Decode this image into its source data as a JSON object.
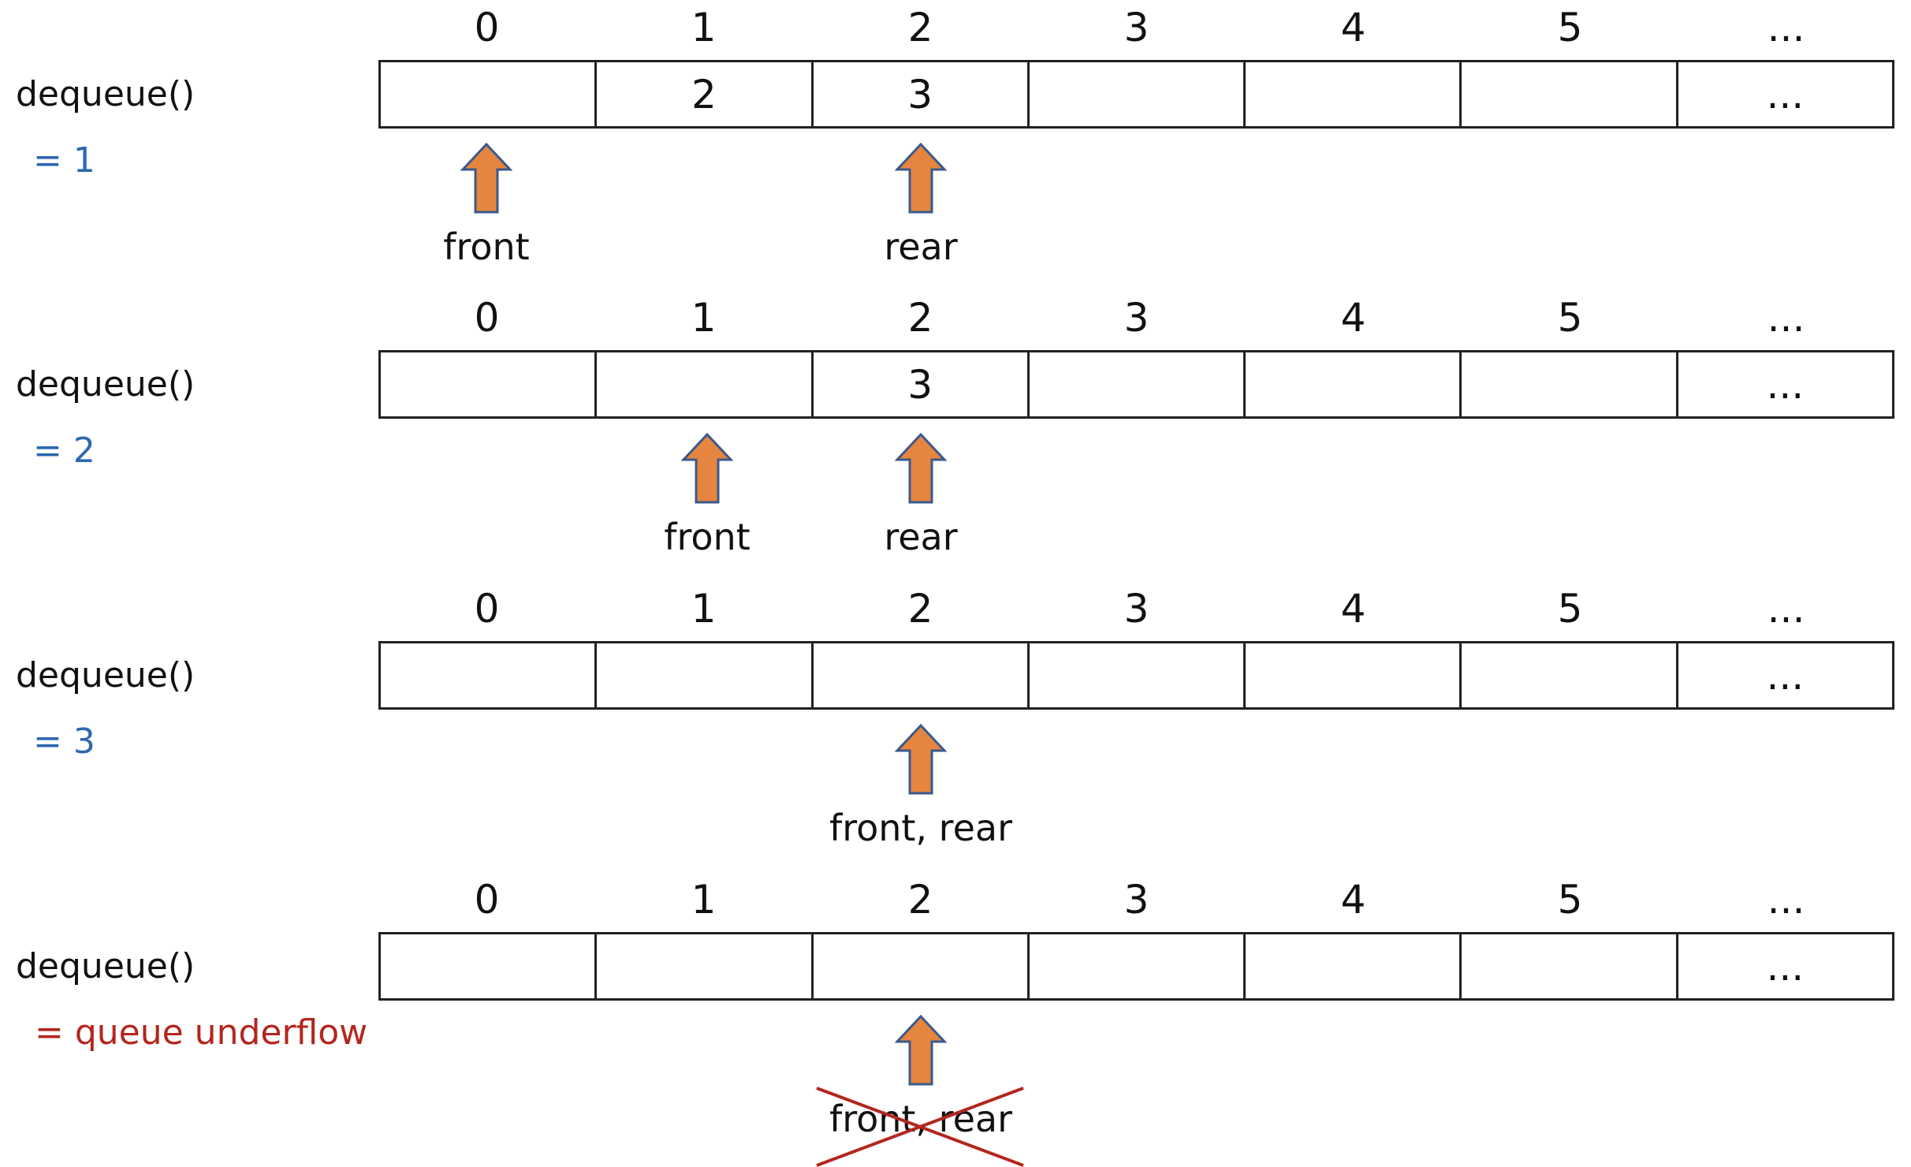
{
  "colors": {
    "arrow_fill": "#e5853f",
    "arrow_stroke": "#3a5a8c",
    "result_blue": "#2e68b0",
    "result_red": "#b3261e",
    "cross_red": "#b3261e"
  },
  "indices": [
    "0",
    "1",
    "2",
    "3",
    "4",
    "5",
    "..."
  ],
  "panels": [
    {
      "operation": "dequeue()",
      "result": "= 1",
      "cells": [
        "",
        "2",
        "3",
        "",
        "",
        "",
        "..."
      ],
      "pointers": [
        {
          "label": "front",
          "cell": 0
        },
        {
          "label": "rear",
          "cell": 2
        }
      ]
    },
    {
      "operation": "dequeue()",
      "result": "= 2",
      "cells": [
        "",
        "",
        "3",
        "",
        "",
        "",
        "..."
      ],
      "pointers": [
        {
          "label": "front",
          "cell": 1
        },
        {
          "label": "rear",
          "cell": 2
        }
      ]
    },
    {
      "operation": "dequeue()",
      "result": "= 3",
      "cells": [
        "",
        "",
        "",
        "",
        "",
        "",
        "..."
      ],
      "pointers": [
        {
          "label": "front, rear",
          "cell": 2
        }
      ]
    },
    {
      "operation": "dequeue()",
      "result": "= queue underflow",
      "cells": [
        "",
        "",
        "",
        "",
        "",
        "",
        "..."
      ],
      "pointers": [
        {
          "label": "front, rear",
          "cell": 2,
          "crossed_out": true
        }
      ]
    }
  ]
}
